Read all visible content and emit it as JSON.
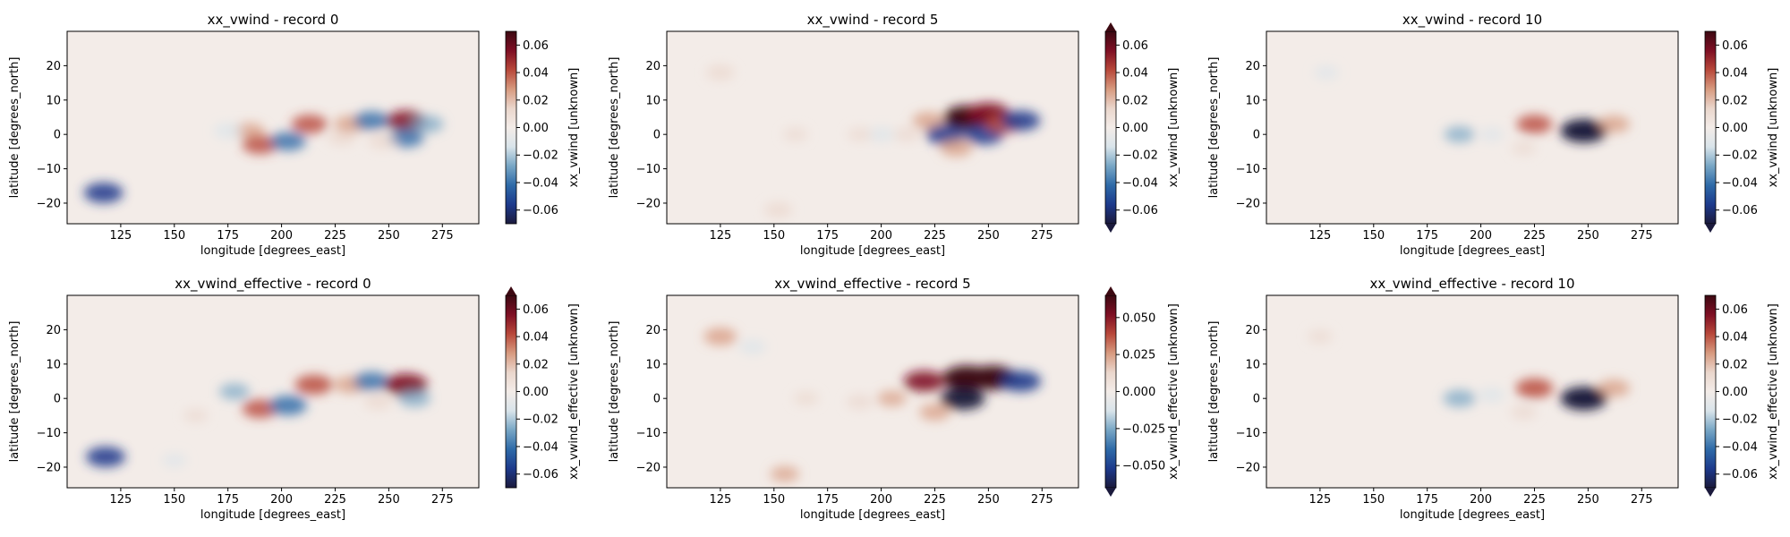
{
  "colors": {
    "cmap": [
      "#1b1a3c",
      "#1d3a8c",
      "#2e6aa8",
      "#78a6c5",
      "#d9e4ea",
      "#f3ece8",
      "#ead6cc",
      "#d79a7f",
      "#b8483a",
      "#7e0f24",
      "#3c0912"
    ],
    "background": "#f3ece8"
  },
  "chart_data": [
    {
      "type": "heatmap",
      "title": "xx_vwind - record 0",
      "xlabel": "longitude [degrees_east]",
      "ylabel": "latitude [degrees_north]",
      "colorbar_label": "xx_vwind [unknown]",
      "xticks": [
        "125",
        "150",
        "175",
        "200",
        "225",
        "250",
        "275"
      ],
      "xtick_values": [
        125,
        150,
        175,
        200,
        225,
        250,
        275
      ],
      "yticks": [
        "20",
        "10",
        "0",
        "−10",
        "−20"
      ],
      "ytick_values": [
        20,
        10,
        0,
        -10,
        -20
      ],
      "xlim": [
        100,
        292
      ],
      "ylim": [
        -26,
        30
      ],
      "cbar_ticks": [
        "0.06",
        "0.04",
        "0.02",
        "0.00",
        "−0.02",
        "−0.04",
        "−0.06"
      ],
      "cbar_tick_values": [
        0.06,
        0.04,
        0.02,
        0.0,
        -0.02,
        -0.04,
        -0.06
      ],
      "vlim": [
        -0.07,
        0.07
      ],
      "extend": "neither",
      "features": [
        {
          "lon": 185,
          "lat": 1,
          "value": 0.025
        },
        {
          "lon": 190,
          "lat": -3,
          "value": 0.04
        },
        {
          "lon": 203,
          "lat": -2,
          "value": -0.04
        },
        {
          "lon": 213,
          "lat": 3,
          "value": 0.04
        },
        {
          "lon": 228,
          "lat": -1,
          "value": 0.02
        },
        {
          "lon": 232,
          "lat": 3,
          "value": 0.03
        },
        {
          "lon": 242,
          "lat": 4,
          "value": -0.04
        },
        {
          "lon": 258,
          "lat": 4,
          "value": 0.05
        },
        {
          "lon": 258,
          "lat": -1,
          "value": -0.04
        },
        {
          "lon": 247,
          "lat": -2,
          "value": 0.02
        },
        {
          "lon": 268,
          "lat": 3,
          "value": -0.03
        },
        {
          "lon": 117,
          "lat": -17,
          "value": -0.05
        },
        {
          "lon": 175,
          "lat": 1,
          "value": -0.02
        }
      ]
    },
    {
      "type": "heatmap",
      "title": "xx_vwind - record 5",
      "xlabel": "longitude [degrees_east]",
      "ylabel": "latitude [degrees_north]",
      "colorbar_label": "xx_vwind [unknown]",
      "xticks": [
        "125",
        "150",
        "175",
        "200",
        "225",
        "250",
        "275"
      ],
      "xtick_values": [
        125,
        150,
        175,
        200,
        225,
        250,
        275
      ],
      "yticks": [
        "20",
        "10",
        "0",
        "−10",
        "−20"
      ],
      "ytick_values": [
        20,
        10,
        0,
        -10,
        -20
      ],
      "xlim": [
        100,
        292
      ],
      "ylim": [
        -26,
        30
      ],
      "cbar_ticks": [
        "0.06",
        "0.04",
        "0.02",
        "0.00",
        "−0.02",
        "−0.04",
        "−0.06"
      ],
      "cbar_tick_values": [
        0.06,
        0.04,
        0.02,
        0.0,
        -0.02,
        -0.04,
        -0.06
      ],
      "vlim": [
        -0.07,
        0.07
      ],
      "extend": "both",
      "features": [
        {
          "lon": 222,
          "lat": 4,
          "value": 0.03
        },
        {
          "lon": 230,
          "lat": 0,
          "value": -0.05
        },
        {
          "lon": 240,
          "lat": 5,
          "value": 0.07
        },
        {
          "lon": 250,
          "lat": 6,
          "value": 0.06
        },
        {
          "lon": 248,
          "lat": 0,
          "value": -0.05
        },
        {
          "lon": 257,
          "lat": 3,
          "value": 0.04
        },
        {
          "lon": 265,
          "lat": 4,
          "value": -0.05
        },
        {
          "lon": 235,
          "lat": -4,
          "value": 0.03
        },
        {
          "lon": 212,
          "lat": 0,
          "value": 0.015
        },
        {
          "lon": 200,
          "lat": 0,
          "value": -0.015
        },
        {
          "lon": 190,
          "lat": 0,
          "value": 0.01
        },
        {
          "lon": 125,
          "lat": 18,
          "value": 0.02
        },
        {
          "lon": 152,
          "lat": -22,
          "value": 0.02
        },
        {
          "lon": 160,
          "lat": 0,
          "value": 0.01
        }
      ]
    },
    {
      "type": "heatmap",
      "title": "xx_vwind - record 10",
      "xlabel": "longitude [degrees_east]",
      "ylabel": "latitude [degrees_north]",
      "colorbar_label": "xx_vwind [unknown]",
      "xticks": [
        "125",
        "150",
        "175",
        "200",
        "225",
        "250",
        "275"
      ],
      "xtick_values": [
        125,
        150,
        175,
        200,
        225,
        250,
        275
      ],
      "yticks": [
        "20",
        "10",
        "0",
        "−10",
        "−20"
      ],
      "ytick_values": [
        20,
        10,
        0,
        -10,
        -20
      ],
      "xlim": [
        100,
        292
      ],
      "ylim": [
        -26,
        30
      ],
      "cbar_ticks": [
        "0.06",
        "0.04",
        "0.02",
        "0.00",
        "−0.02",
        "−0.04",
        "−0.06"
      ],
      "cbar_tick_values": [
        0.06,
        0.04,
        0.02,
        0.0,
        -0.02,
        -0.04,
        -0.06
      ],
      "vlim": [
        -0.07,
        0.07
      ],
      "extend": "min",
      "features": [
        {
          "lon": 190,
          "lat": 0,
          "value": -0.025
        },
        {
          "lon": 205,
          "lat": 0,
          "value": -0.01
        },
        {
          "lon": 225,
          "lat": 3,
          "value": 0.04
        },
        {
          "lon": 248,
          "lat": 1,
          "value": -0.07
        },
        {
          "lon": 262,
          "lat": 3,
          "value": 0.03
        },
        {
          "lon": 220,
          "lat": -4,
          "value": 0.01
        },
        {
          "lon": 128,
          "lat": 18,
          "value": -0.01
        }
      ]
    },
    {
      "type": "heatmap",
      "title": "xx_vwind_effective - record 0",
      "xlabel": "longitude [degrees_east]",
      "ylabel": "latitude [degrees_north]",
      "colorbar_label": "xx_vwind_effective [unknown]",
      "xticks": [
        "125",
        "150",
        "175",
        "200",
        "225",
        "250",
        "275"
      ],
      "xtick_values": [
        125,
        150,
        175,
        200,
        225,
        250,
        275
      ],
      "yticks": [
        "20",
        "10",
        "0",
        "−10",
        "−20"
      ],
      "ytick_values": [
        20,
        10,
        0,
        -10,
        -20
      ],
      "xlim": [
        100,
        292
      ],
      "ylim": [
        -26,
        30
      ],
      "cbar_ticks": [
        "0.06",
        "0.04",
        "0.02",
        "0.00",
        "−0.02",
        "−0.04",
        "−0.06"
      ],
      "cbar_tick_values": [
        0.06,
        0.04,
        0.02,
        0.0,
        -0.02,
        -0.04,
        -0.06
      ],
      "vlim": [
        -0.07,
        0.07
      ],
      "extend": "max",
      "features": [
        {
          "lon": 178,
          "lat": 2,
          "value": -0.025
        },
        {
          "lon": 190,
          "lat": -3,
          "value": 0.04
        },
        {
          "lon": 203,
          "lat": -2,
          "value": -0.045
        },
        {
          "lon": 215,
          "lat": 4,
          "value": 0.045
        },
        {
          "lon": 232,
          "lat": 4,
          "value": 0.03
        },
        {
          "lon": 242,
          "lat": 5,
          "value": -0.04
        },
        {
          "lon": 258,
          "lat": 4,
          "value": 0.06
        },
        {
          "lon": 262,
          "lat": 0,
          "value": -0.03
        },
        {
          "lon": 245,
          "lat": -1,
          "value": 0.02
        },
        {
          "lon": 118,
          "lat": -17,
          "value": -0.05
        },
        {
          "lon": 160,
          "lat": -5,
          "value": 0.01
        },
        {
          "lon": 150,
          "lat": -18,
          "value": -0.01
        }
      ]
    },
    {
      "type": "heatmap",
      "title": "xx_vwind_effective - record 5",
      "xlabel": "longitude [degrees_east]",
      "ylabel": "latitude [degrees_north]",
      "colorbar_label": "xx_vwind_effective [unknown]",
      "xticks": [
        "125",
        "150",
        "175",
        "200",
        "225",
        "250",
        "275"
      ],
      "xtick_values": [
        125,
        150,
        175,
        200,
        225,
        250,
        275
      ],
      "yticks": [
        "20",
        "10",
        "0",
        "−10",
        "−20"
      ],
      "ytick_values": [
        20,
        10,
        0,
        -10,
        -20
      ],
      "xlim": [
        100,
        292
      ],
      "ylim": [
        -26,
        30
      ],
      "cbar_ticks": [
        "0.050",
        "0.025",
        "0.000",
        "−0.025",
        "−0.050"
      ],
      "cbar_tick_values": [
        0.05,
        0.025,
        0.0,
        -0.025,
        -0.05
      ],
      "vlim": [
        -0.065,
        0.065
      ],
      "extend": "both",
      "features": [
        {
          "lon": 220,
          "lat": 5,
          "value": 0.05
        },
        {
          "lon": 240,
          "lat": 6,
          "value": 0.07
        },
        {
          "lon": 252,
          "lat": 6,
          "value": 0.07
        },
        {
          "lon": 238,
          "lat": 0,
          "value": -0.06
        },
        {
          "lon": 265,
          "lat": 5,
          "value": -0.05
        },
        {
          "lon": 205,
          "lat": 0,
          "value": 0.02
        },
        {
          "lon": 190,
          "lat": -1,
          "value": 0.015
        },
        {
          "lon": 125,
          "lat": 18,
          "value": 0.03
        },
        {
          "lon": 140,
          "lat": 15,
          "value": -0.015
        },
        {
          "lon": 155,
          "lat": -22,
          "value": 0.02
        },
        {
          "lon": 225,
          "lat": -4,
          "value": 0.025
        },
        {
          "lon": 165,
          "lat": 0,
          "value": 0.01
        }
      ]
    },
    {
      "type": "heatmap",
      "title": "xx_vwind_effective - record 10",
      "xlabel": "longitude [degrees_east]",
      "ylabel": "latitude [degrees_north]",
      "colorbar_label": "xx_vwind_effective [unknown]",
      "xticks": [
        "125",
        "150",
        "175",
        "200",
        "225",
        "250",
        "275"
      ],
      "xtick_values": [
        125,
        150,
        175,
        200,
        225,
        250,
        275
      ],
      "yticks": [
        "20",
        "10",
        "0",
        "−10",
        "−20"
      ],
      "ytick_values": [
        20,
        10,
        0,
        -10,
        -20
      ],
      "xlim": [
        100,
        292
      ],
      "ylim": [
        -26,
        30
      ],
      "cbar_ticks": [
        "0.06",
        "0.04",
        "0.02",
        "0.00",
        "−0.02",
        "−0.04",
        "−0.06"
      ],
      "cbar_tick_values": [
        0.06,
        0.04,
        0.02,
        0.0,
        -0.02,
        -0.04,
        -0.06
      ],
      "vlim": [
        -0.07,
        0.07
      ],
      "extend": "min",
      "features": [
        {
          "lon": 190,
          "lat": 0,
          "value": -0.03
        },
        {
          "lon": 205,
          "lat": 1,
          "value": -0.015
        },
        {
          "lon": 225,
          "lat": 3,
          "value": 0.045
        },
        {
          "lon": 248,
          "lat": 0,
          "value": -0.07
        },
        {
          "lon": 262,
          "lat": 3,
          "value": 0.03
        },
        {
          "lon": 220,
          "lat": -4,
          "value": 0.015
        },
        {
          "lon": 125,
          "lat": 18,
          "value": 0.01
        }
      ]
    }
  ]
}
